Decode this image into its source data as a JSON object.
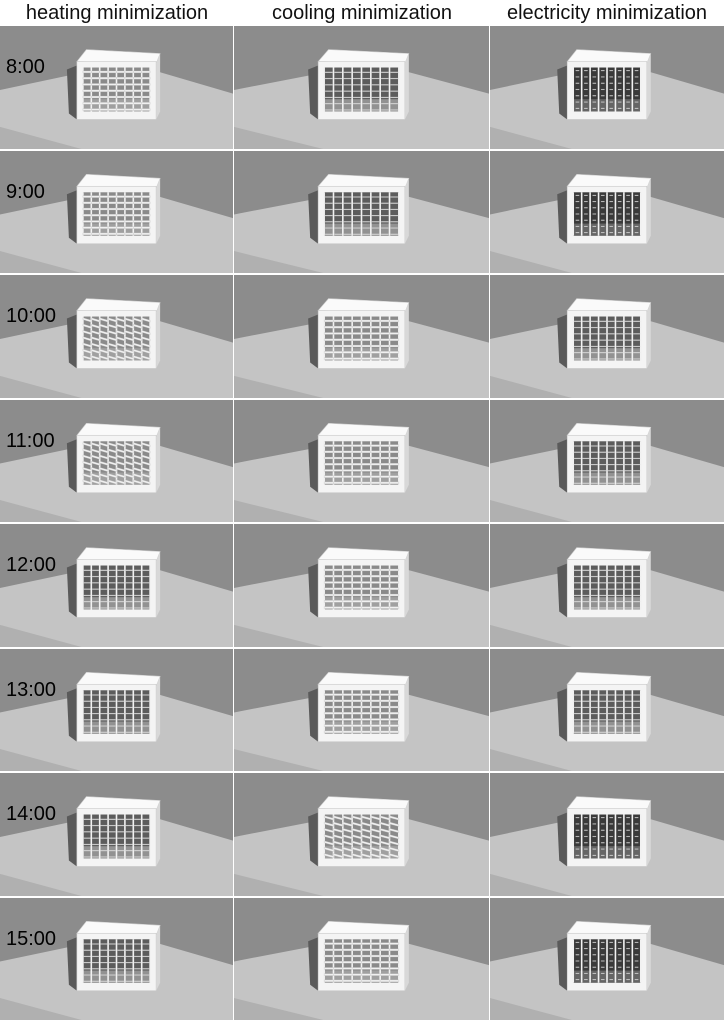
{
  "columns": [
    "heating minimization",
    "cooling minimization",
    "electricity minimization"
  ],
  "rows": [
    {
      "time": "8:00",
      "cells": [
        {
          "shading": "open"
        },
        {
          "shading": "medium"
        },
        {
          "shading": "dark"
        }
      ]
    },
    {
      "time": "9:00",
      "cells": [
        {
          "shading": "open"
        },
        {
          "shading": "medium"
        },
        {
          "shading": "dark"
        }
      ]
    },
    {
      "time": "10:00",
      "cells": [
        {
          "shading": "angled"
        },
        {
          "shading": "open"
        },
        {
          "shading": "medium"
        }
      ]
    },
    {
      "time": "11:00",
      "cells": [
        {
          "shading": "angled"
        },
        {
          "shading": "open"
        },
        {
          "shading": "medium"
        }
      ]
    },
    {
      "time": "12:00",
      "cells": [
        {
          "shading": "medium"
        },
        {
          "shading": "open"
        },
        {
          "shading": "medium"
        }
      ]
    },
    {
      "time": "13:00",
      "cells": [
        {
          "shading": "medium"
        },
        {
          "shading": "open"
        },
        {
          "shading": "medium"
        }
      ]
    },
    {
      "time": "14:00",
      "cells": [
        {
          "shading": "medium"
        },
        {
          "shading": "angled"
        },
        {
          "shading": "dark"
        }
      ]
    },
    {
      "time": "15:00",
      "cells": [
        {
          "shading": "medium"
        },
        {
          "shading": "open"
        },
        {
          "shading": "dark"
        }
      ]
    }
  ],
  "colors": {
    "background": "#8c8c8c",
    "ground_plane": "#c4c4c4",
    "shadow": "#5a5a5a",
    "box_frame": "#f4f4f4",
    "box_side": "#d8d8d8",
    "divider": "#f0f0f0"
  }
}
